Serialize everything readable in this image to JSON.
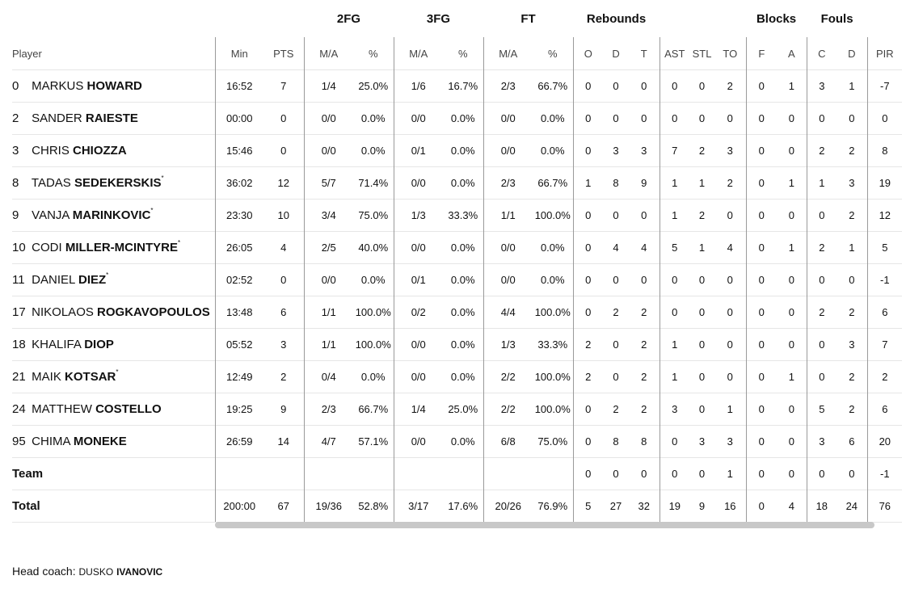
{
  "groups": {
    "fg2": "2FG",
    "fg3": "3FG",
    "ft": "FT",
    "rebounds": "Rebounds",
    "blocks": "Blocks",
    "fouls": "Fouls"
  },
  "headers": [
    "Player",
    "Min",
    "PTS",
    "M/A",
    "%",
    "M/A",
    "%",
    "M/A",
    "%",
    "O",
    "D",
    "T",
    "AST",
    "STL",
    "TO",
    "F",
    "A",
    "C",
    "D",
    "PIR"
  ],
  "players": [
    {
      "num": "0",
      "first": "MARKUS",
      "last": "HOWARD",
      "starter": false,
      "stats": [
        "16:52",
        "7",
        "1/4",
        "25.0%",
        "1/6",
        "16.7%",
        "2/3",
        "66.7%",
        "0",
        "0",
        "0",
        "0",
        "0",
        "2",
        "0",
        "1",
        "3",
        "1",
        "-7"
      ]
    },
    {
      "num": "2",
      "first": "SANDER",
      "last": "RAIESTE",
      "starter": false,
      "stats": [
        "00:00",
        "0",
        "0/0",
        "0.0%",
        "0/0",
        "0.0%",
        "0/0",
        "0.0%",
        "0",
        "0",
        "0",
        "0",
        "0",
        "0",
        "0",
        "0",
        "0",
        "0",
        "0"
      ]
    },
    {
      "num": "3",
      "first": "CHRIS",
      "last": "CHIOZZA",
      "starter": false,
      "stats": [
        "15:46",
        "0",
        "0/0",
        "0.0%",
        "0/1",
        "0.0%",
        "0/0",
        "0.0%",
        "0",
        "3",
        "3",
        "7",
        "2",
        "3",
        "0",
        "0",
        "2",
        "2",
        "8"
      ]
    },
    {
      "num": "8",
      "first": "TADAS",
      "last": "SEDEKERSKIS",
      "starter": true,
      "stats": [
        "36:02",
        "12",
        "5/7",
        "71.4%",
        "0/0",
        "0.0%",
        "2/3",
        "66.7%",
        "1",
        "8",
        "9",
        "1",
        "1",
        "2",
        "0",
        "1",
        "1",
        "3",
        "19"
      ]
    },
    {
      "num": "9",
      "first": "VANJA",
      "last": "MARINKOVIC",
      "starter": true,
      "stats": [
        "23:30",
        "10",
        "3/4",
        "75.0%",
        "1/3",
        "33.3%",
        "1/1",
        "100.0%",
        "0",
        "0",
        "0",
        "1",
        "2",
        "0",
        "0",
        "0",
        "0",
        "2",
        "12"
      ]
    },
    {
      "num": "10",
      "first": "CODI",
      "last": "MILLER-MCINTYRE",
      "starter": true,
      "stats": [
        "26:05",
        "4",
        "2/5",
        "40.0%",
        "0/0",
        "0.0%",
        "0/0",
        "0.0%",
        "0",
        "4",
        "4",
        "5",
        "1",
        "4",
        "0",
        "1",
        "2",
        "1",
        "5"
      ]
    },
    {
      "num": "11",
      "first": "DANIEL",
      "last": "DIEZ",
      "starter": true,
      "stats": [
        "02:52",
        "0",
        "0/0",
        "0.0%",
        "0/1",
        "0.0%",
        "0/0",
        "0.0%",
        "0",
        "0",
        "0",
        "0",
        "0",
        "0",
        "0",
        "0",
        "0",
        "0",
        "-1"
      ]
    },
    {
      "num": "17",
      "first": "NIKOLAOS",
      "last": "ROGKAVOPOULOS",
      "starter": false,
      "stats": [
        "13:48",
        "6",
        "1/1",
        "100.0%",
        "0/2",
        "0.0%",
        "4/4",
        "100.0%",
        "0",
        "2",
        "2",
        "0",
        "0",
        "0",
        "0",
        "0",
        "2",
        "2",
        "6"
      ]
    },
    {
      "num": "18",
      "first": "KHALIFA",
      "last": "DIOP",
      "starter": false,
      "stats": [
        "05:52",
        "3",
        "1/1",
        "100.0%",
        "0/0",
        "0.0%",
        "1/3",
        "33.3%",
        "2",
        "0",
        "2",
        "1",
        "0",
        "0",
        "0",
        "0",
        "0",
        "3",
        "7"
      ]
    },
    {
      "num": "21",
      "first": "MAIK",
      "last": "KOTSAR",
      "starter": true,
      "stats": [
        "12:49",
        "2",
        "0/4",
        "0.0%",
        "0/0",
        "0.0%",
        "2/2",
        "100.0%",
        "2",
        "0",
        "2",
        "1",
        "0",
        "0",
        "0",
        "1",
        "0",
        "2",
        "2"
      ]
    },
    {
      "num": "24",
      "first": "MATTHEW",
      "last": "COSTELLO",
      "starter": false,
      "stats": [
        "19:25",
        "9",
        "2/3",
        "66.7%",
        "1/4",
        "25.0%",
        "2/2",
        "100.0%",
        "0",
        "2",
        "2",
        "3",
        "0",
        "1",
        "0",
        "0",
        "5",
        "2",
        "6"
      ]
    },
    {
      "num": "95",
      "first": "CHIMA",
      "last": "MONEKE",
      "starter": false,
      "stats": [
        "26:59",
        "14",
        "4/7",
        "57.1%",
        "0/0",
        "0.0%",
        "6/8",
        "75.0%",
        "0",
        "8",
        "8",
        "0",
        "3",
        "3",
        "0",
        "0",
        "3",
        "6",
        "20"
      ]
    }
  ],
  "team": {
    "label": "Team",
    "stats": [
      "",
      "",
      "",
      "",
      "",
      "",
      "",
      "",
      "0",
      "0",
      "0",
      "0",
      "0",
      "1",
      "0",
      "0",
      "0",
      "0",
      "-1"
    ]
  },
  "total": {
    "label": "Total",
    "stats": [
      "200:00",
      "67",
      "19/36",
      "52.8%",
      "3/17",
      "17.6%",
      "20/26",
      "76.9%",
      "5",
      "27",
      "32",
      "19",
      "9",
      "16",
      "0",
      "4",
      "18",
      "24",
      "76"
    ]
  },
  "coach": {
    "prefix": "Head coach:",
    "first": "DUSKO",
    "last": "IVANOVIC"
  },
  "colors": {
    "divider": "#9a9a9a",
    "row_line": "#e6e6e6",
    "scrollbar": "#c8c8c8"
  }
}
